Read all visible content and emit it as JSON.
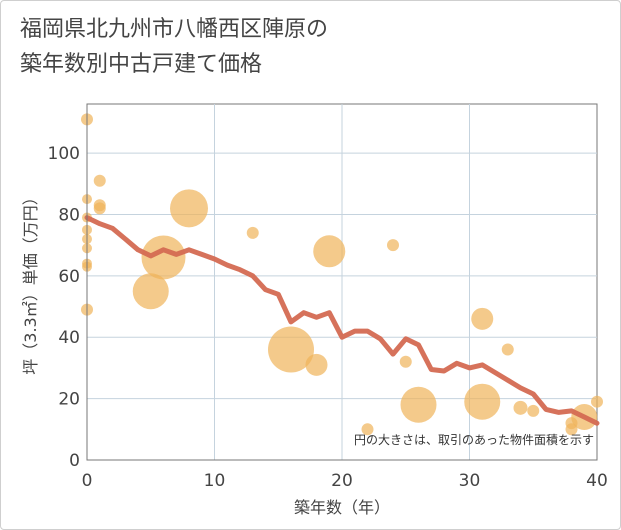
{
  "chart_data": {
    "type": "scatter",
    "title_line1": "福岡県北九州市八幡西区陣原の",
    "title_line2": "築年数別中古戸建て価格",
    "xlabel": "築年数（年）",
    "ylabel": "坪（3.3㎡）単価（万円）",
    "note": "円の大きさは、取引のあった物件面積を示す",
    "xlim": [
      0,
      40
    ],
    "ylim": [
      0,
      116
    ],
    "xticks": [
      0,
      10,
      20,
      30,
      40
    ],
    "yticks": [
      0,
      20,
      40,
      60,
      80,
      100
    ],
    "colors": {
      "bubble": "#f0b45a",
      "line": "#d46a52",
      "grid": "#c5d3de",
      "axis": "#777777"
    },
    "points": [
      {
        "x": 0,
        "y": 111,
        "s": 6
      },
      {
        "x": 0,
        "y": 85,
        "s": 5
      },
      {
        "x": 0,
        "y": 79,
        "s": 5
      },
      {
        "x": 0,
        "y": 75,
        "s": 5
      },
      {
        "x": 0,
        "y": 72,
        "s": 5
      },
      {
        "x": 0,
        "y": 69,
        "s": 5
      },
      {
        "x": 0,
        "y": 64,
        "s": 5
      },
      {
        "x": 0,
        "y": 63,
        "s": 5
      },
      {
        "x": 0,
        "y": 49,
        "s": 6
      },
      {
        "x": 1,
        "y": 91,
        "s": 6
      },
      {
        "x": 1,
        "y": 83,
        "s": 6
      },
      {
        "x": 1,
        "y": 82,
        "s": 6
      },
      {
        "x": 5,
        "y": 55,
        "s": 18
      },
      {
        "x": 6,
        "y": 66,
        "s": 22
      },
      {
        "x": 8,
        "y": 82,
        "s": 19
      },
      {
        "x": 13,
        "y": 74,
        "s": 6
      },
      {
        "x": 16,
        "y": 36,
        "s": 23
      },
      {
        "x": 18,
        "y": 31,
        "s": 11
      },
      {
        "x": 19,
        "y": 68,
        "s": 16
      },
      {
        "x": 22,
        "y": 10,
        "s": 6
      },
      {
        "x": 24,
        "y": 70,
        "s": 6
      },
      {
        "x": 25,
        "y": 32,
        "s": 6
      },
      {
        "x": 26,
        "y": 18,
        "s": 18
      },
      {
        "x": 31,
        "y": 46,
        "s": 11
      },
      {
        "x": 31,
        "y": 19,
        "s": 18
      },
      {
        "x": 33,
        "y": 36,
        "s": 6
      },
      {
        "x": 34,
        "y": 17,
        "s": 7
      },
      {
        "x": 35,
        "y": 16,
        "s": 6
      },
      {
        "x": 38,
        "y": 12,
        "s": 6
      },
      {
        "x": 38,
        "y": 10,
        "s": 6
      },
      {
        "x": 39,
        "y": 14,
        "s": 13
      },
      {
        "x": 40,
        "y": 19,
        "s": 6
      }
    ],
    "trend": {
      "x": [
        0,
        1,
        2,
        3,
        4,
        5,
        6,
        7,
        8,
        9,
        10,
        11,
        12,
        13,
        14,
        15,
        16,
        17,
        18,
        19,
        20,
        21,
        22,
        23,
        24,
        25,
        26,
        27,
        28,
        29,
        30,
        31,
        32,
        33,
        34,
        35,
        36,
        37,
        38,
        39,
        40
      ],
      "y": [
        79,
        77,
        75.5,
        72,
        68.5,
        66.5,
        68.5,
        67,
        68.5,
        67,
        65.5,
        63.5,
        62,
        60,
        55.5,
        54,
        45,
        48,
        46.5,
        48,
        40,
        42,
        42,
        39.5,
        34.5,
        39.5,
        37.5,
        29.5,
        29,
        31.5,
        30,
        31,
        28.5,
        26,
        23.5,
        21.5,
        16.5,
        15.5,
        16,
        14,
        12
      ]
    }
  }
}
